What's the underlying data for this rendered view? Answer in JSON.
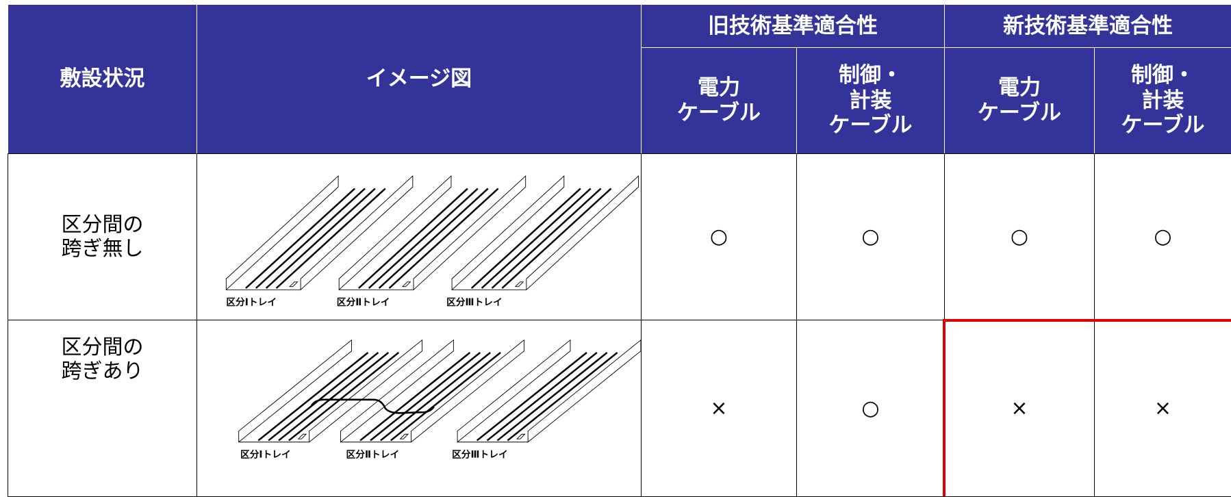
{
  "table": {
    "header": {
      "situation": "敷設状況",
      "image": "イメージ図",
      "groups": [
        {
          "title": "旧技術基準適合性",
          "columns": [
            "電力\nケーブル",
            "制御・\n計装\nケーブル"
          ]
        },
        {
          "title": "新技術基準適合性",
          "columns": [
            "電力\nケーブル",
            "制御・\n計装\nケーブル"
          ]
        }
      ]
    },
    "rows": [
      {
        "situation": "区分間の\n跨ぎ無し",
        "tray_labels": [
          "区分Ⅰトレイ",
          "区分Ⅱトレイ",
          "区分Ⅲトレイ"
        ],
        "marks": [
          "○",
          "○",
          "○",
          "○"
        ]
      },
      {
        "situation": "区分間の\n跨ぎあり",
        "tray_labels": [
          "区分Ⅰトレイ",
          "区分Ⅱトレイ",
          "区分Ⅲトレイ"
        ],
        "marks": [
          "×",
          "○",
          "×",
          "×"
        ]
      }
    ]
  }
}
